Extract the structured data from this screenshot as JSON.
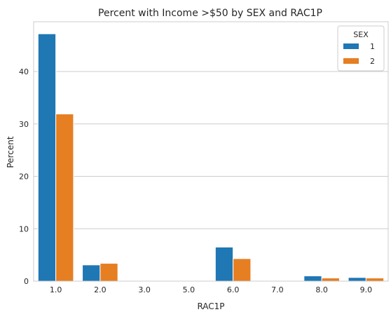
{
  "chart_data": {
    "type": "bar",
    "title": "Percent with Income >$50 by SEX and RAC1P",
    "xlabel": "RAC1P",
    "ylabel": "Percent",
    "categories": [
      "1.0",
      "2.0",
      "3.0",
      "5.0",
      "6.0",
      "7.0",
      "8.0",
      "9.0"
    ],
    "series": [
      {
        "name": "1",
        "color": "#1f77b4",
        "values": [
          47.2,
          3.1,
          0,
          0,
          6.5,
          0,
          1.0,
          0.7
        ]
      },
      {
        "name": "2",
        "color": "#e67e22",
        "values": [
          31.9,
          3.4,
          0,
          0,
          4.3,
          0,
          0.6,
          0.6
        ]
      }
    ],
    "ylim": [
      0,
      49.5
    ],
    "yticks": [
      0,
      10,
      20,
      30,
      40
    ],
    "grid": "horizontal",
    "legend": {
      "title": "SEX",
      "placement": "top-right"
    }
  }
}
